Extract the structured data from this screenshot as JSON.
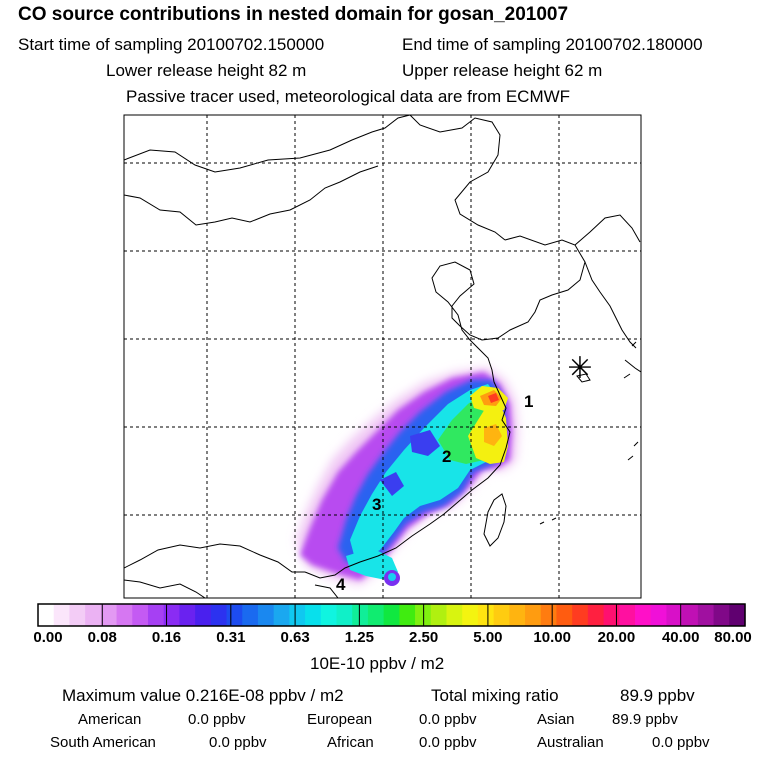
{
  "header": {
    "title": "CO  source contributions in nested domain for gosan_201007",
    "start_time": "Start time of sampling 20100702.150000",
    "end_time": "End time of sampling 20100702.180000",
    "lower_height": "Lower release height   82 m",
    "upper_height": "Upper release height   62 m",
    "tracer_note": "Passive tracer used, meteorological data are from ECMWF"
  },
  "chart_data": {
    "type": "heatmap",
    "title": "CO  source contributions in nested domain for gosan_201007",
    "region_labels": [
      "1",
      "2",
      "3",
      "4"
    ],
    "receptor_symbol": "✳",
    "colorbar": {
      "unit_label": "10E-10 ppbv / m2",
      "tick_labels": [
        "0.00",
        "0.08",
        "0.16",
        "0.31",
        "0.63",
        "1.25",
        "2.50",
        "5.00",
        "10.00",
        "20.00",
        "40.00",
        "80.00"
      ],
      "colors": [
        "#ffffff",
        "#fbe6fb",
        "#f3ccf6",
        "#ebb2f3",
        "#e399f3",
        "#d677f2",
        "#c45af3",
        "#a640f3",
        "#8a2cf3",
        "#6a22f0",
        "#4a20ee",
        "#2c32f0",
        "#1d4cf0",
        "#1a6af0",
        "#1a88f0",
        "#1aa8f0",
        "#10c8f0",
        "#08e0ec",
        "#10f4e0",
        "#10f0c8",
        "#10ee98",
        "#10ec70",
        "#10e840",
        "#40ec10",
        "#80f010",
        "#b0f010",
        "#d8f410",
        "#f4f410",
        "#ffe410",
        "#ffcc10",
        "#ffb410",
        "#ff9c10",
        "#ff7c10",
        "#ff5c10",
        "#ff3c20",
        "#ff2040",
        "#ff1070",
        "#ff10a0",
        "#ff10c8",
        "#f010d8",
        "#d810c8",
        "#c010b4",
        "#a010a0",
        "#800888",
        "#600070"
      ]
    },
    "max_value": 2.16e-09,
    "total_mixing_ratio_ppbv": 89.9,
    "contributions_ppbv": {
      "American": 0.0,
      "European": 0.0,
      "Asian": 89.9,
      "South American": 0.0,
      "African": 0.0,
      "Australian": 0.0
    }
  },
  "stats": {
    "max_label": "Maximum value  0.216E-08 ppbv / m2",
    "total_label": "Total mixing ratio",
    "total_value": "89.9 ppbv",
    "rows": [
      [
        {
          "name": "American",
          "value": "0.0 ppbv"
        },
        {
          "name": "European",
          "value": "0.0 ppbv"
        },
        {
          "name": "Asian",
          "value": "89.9 ppbv"
        }
      ],
      [
        {
          "name": "South American",
          "value": "0.0 ppbv"
        },
        {
          "name": "African",
          "value": "0.0 ppbv"
        },
        {
          "name": "Australian",
          "value": "0.0 ppbv"
        }
      ]
    ]
  }
}
